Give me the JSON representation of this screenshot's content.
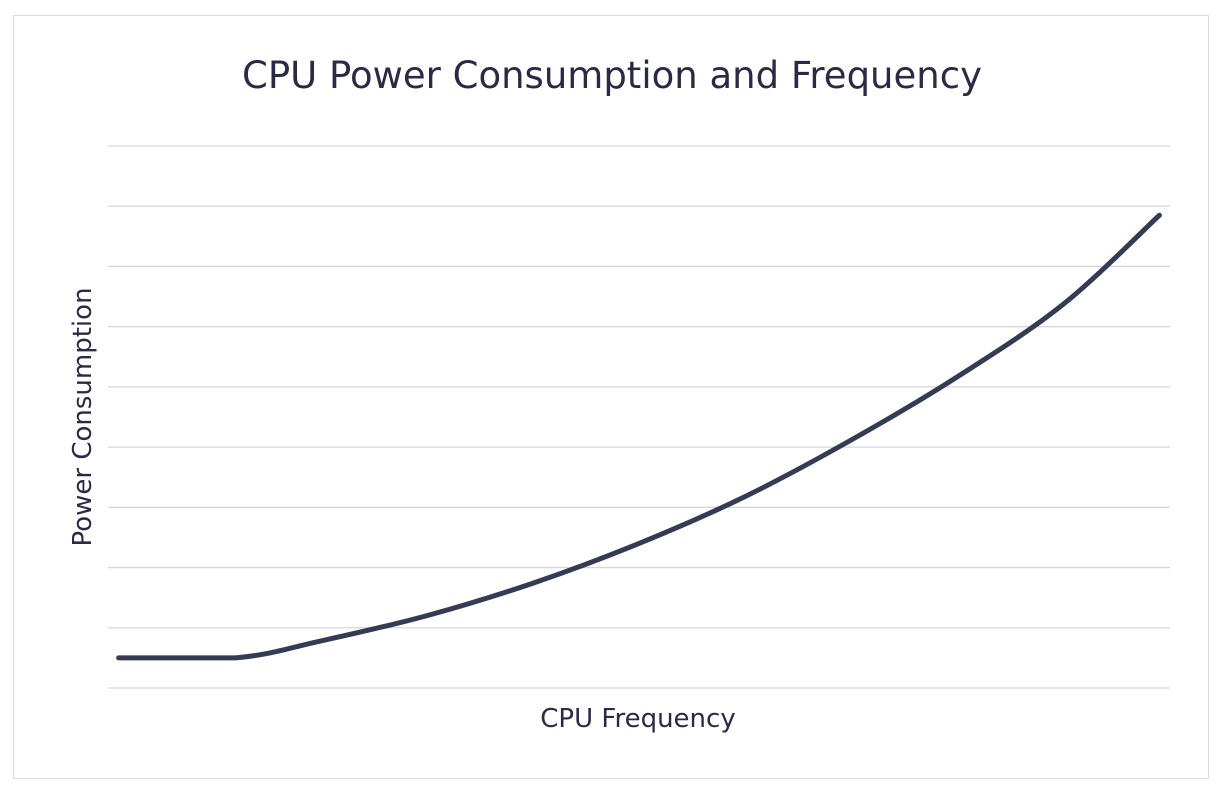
{
  "chart_data": {
    "type": "line",
    "title": "CPU Power Consumption and Frequency",
    "xlabel": "CPU Frequency",
    "ylabel": "Power Consumption",
    "xlim": [
      0,
      100
    ],
    "ylim": [
      0,
      9
    ],
    "grid": true,
    "legend": "none",
    "series": [
      {
        "color": "#343b52",
        "x": [
          1,
          12,
          20,
          30,
          40,
          50,
          60,
          70,
          80,
          90,
          99
        ],
        "y": [
          0.5,
          0.5,
          0.78,
          1.2,
          1.74,
          2.4,
          3.18,
          4.12,
          5.17,
          6.38,
          7.85
        ]
      }
    ]
  }
}
